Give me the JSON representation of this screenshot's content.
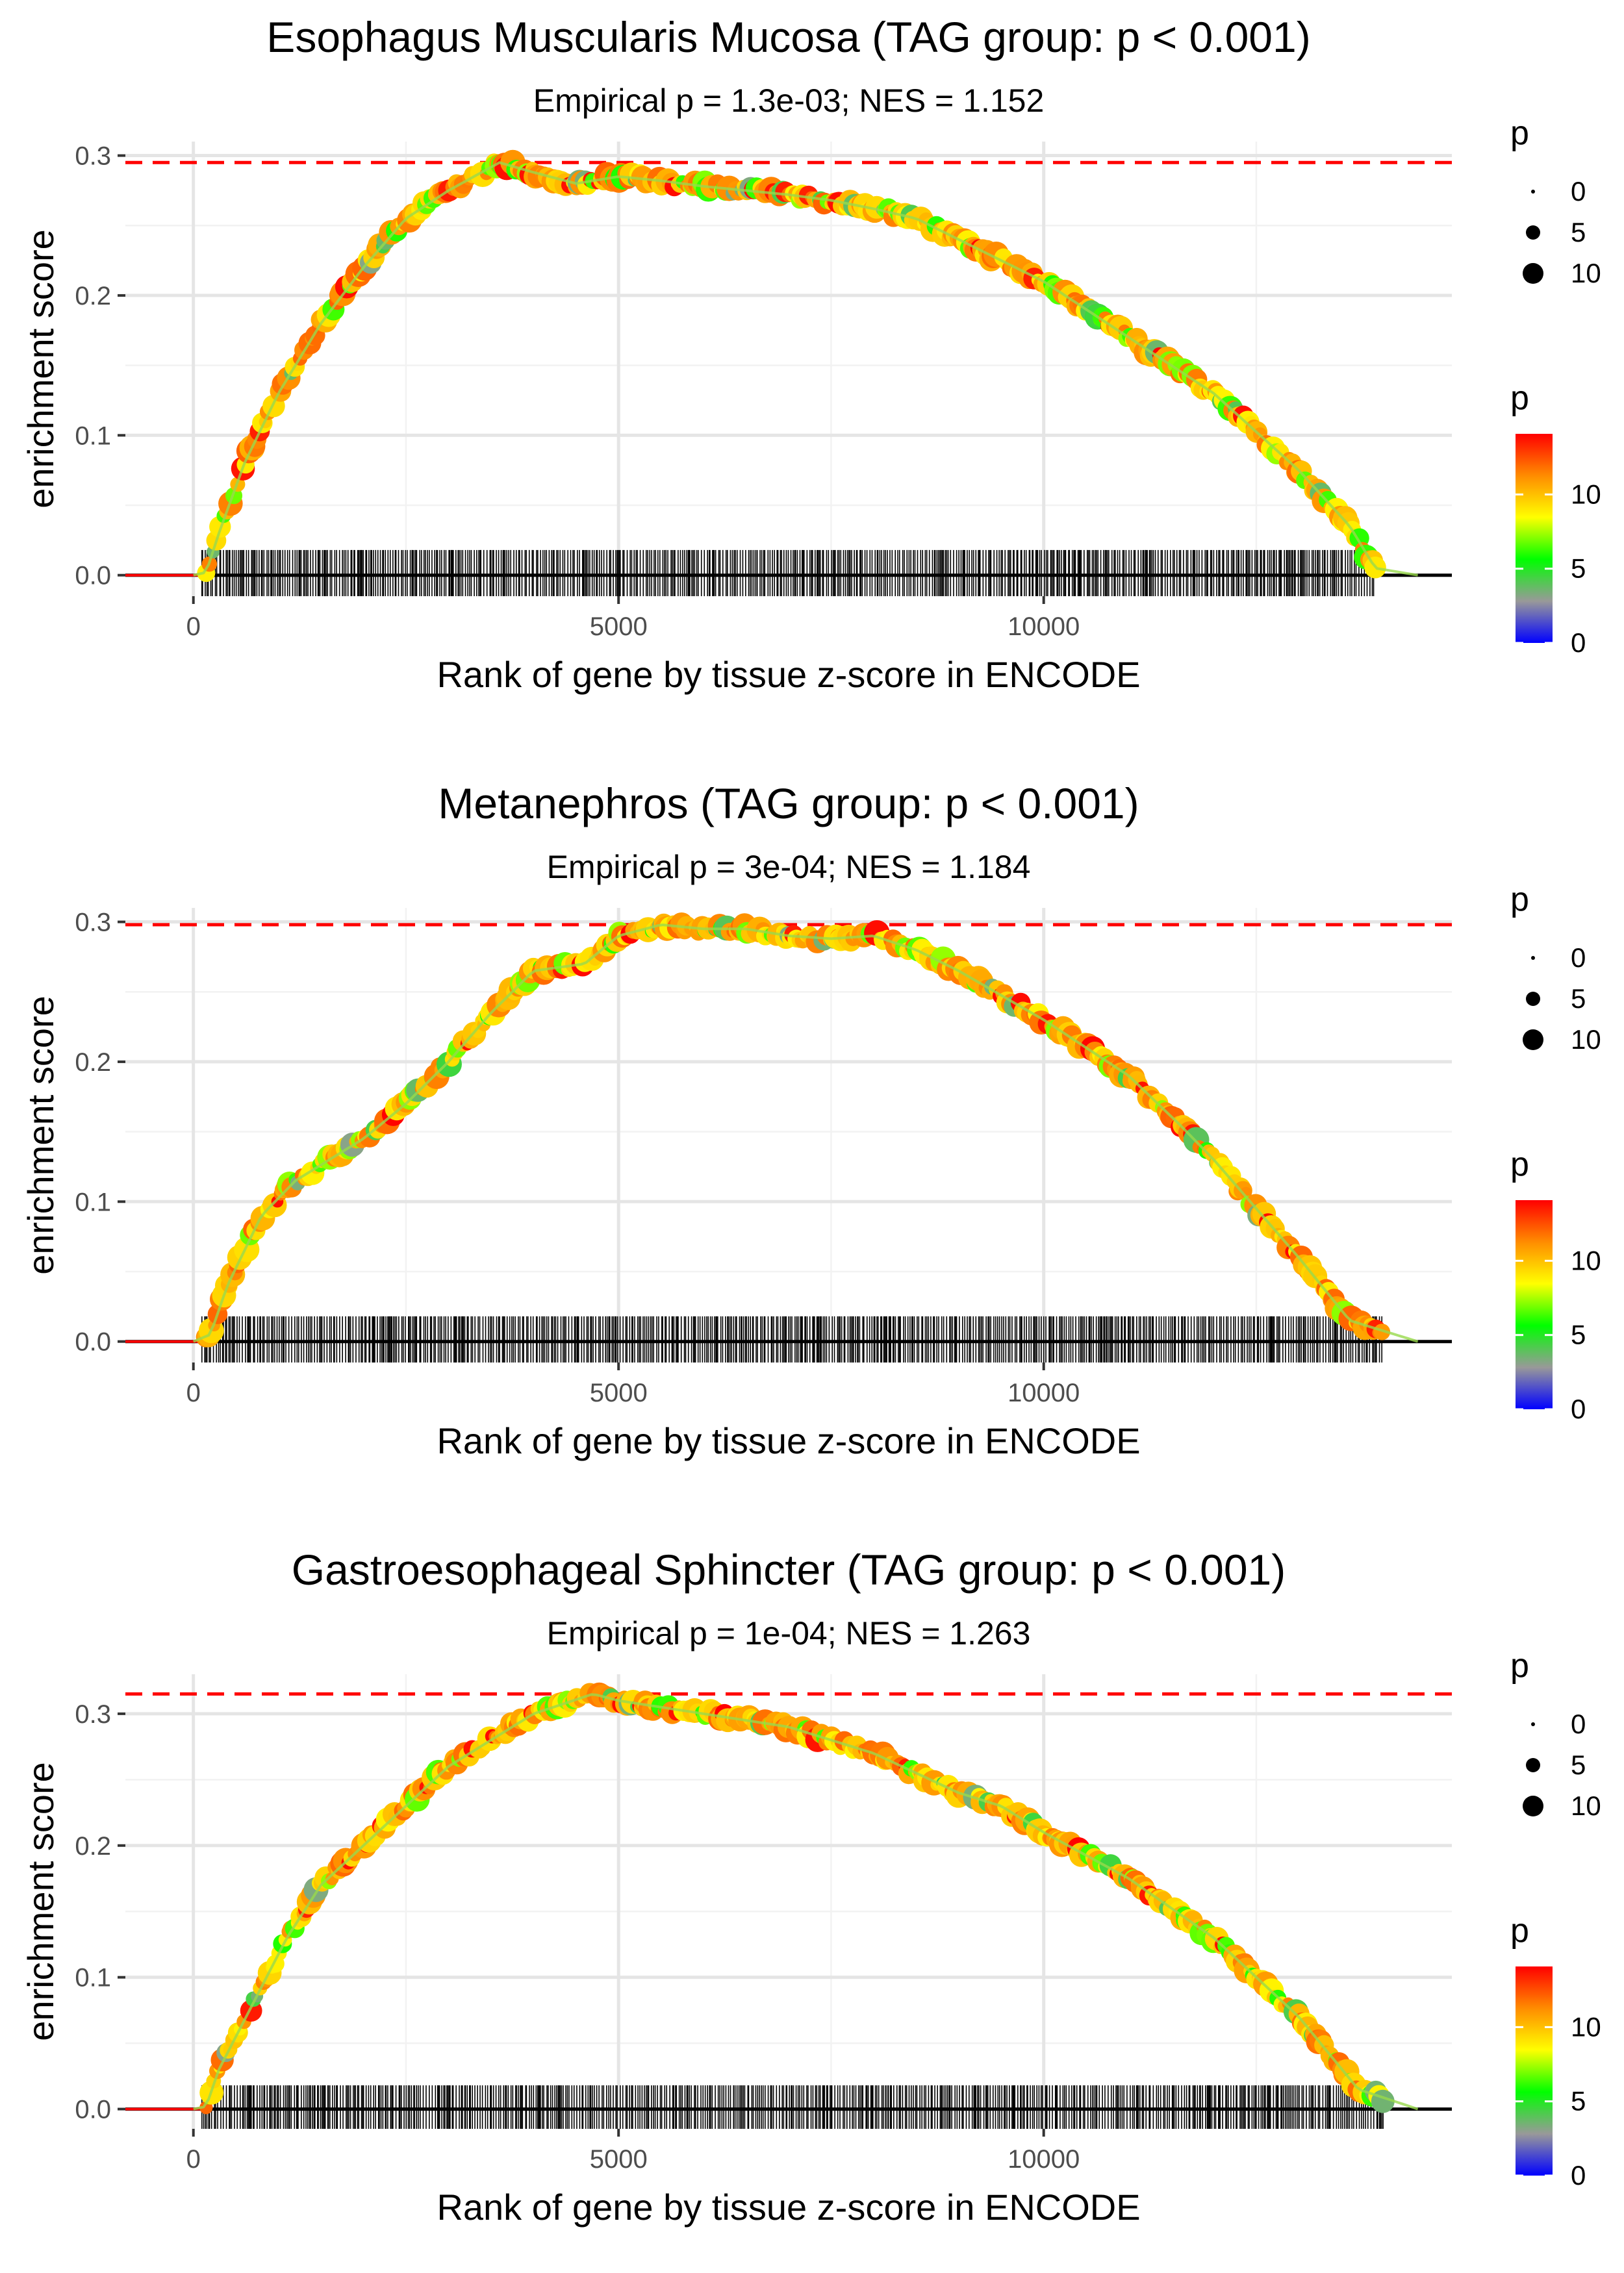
{
  "chart_data": [
    {
      "type": "scatter",
      "title": "Esophagus Muscularis Mucosa (TAG group: p < 0.001)",
      "subtitle": "Empirical p = 1.3e-03; NES = 1.152",
      "xlabel": "Rank of gene by tissue z-score in ENCODE",
      "ylabel": "enrichment score",
      "xlim": [
        -800,
        14800
      ],
      "ylim": [
        -0.015,
        0.31
      ],
      "x_ticks": [
        0,
        5000,
        10000
      ],
      "x_tick_labels": [
        "0",
        "5000",
        "10000"
      ],
      "y_ticks": [
        0.0,
        0.1,
        0.2,
        0.3
      ],
      "y_tick_labels": [
        "0.0",
        "0.1",
        "0.2",
        "0.3"
      ],
      "max_es": 0.295,
      "curve": {
        "x": [
          0,
          150,
          300,
          600,
          1000,
          1500,
          2000,
          2500,
          3000,
          3600,
          4000,
          4500,
          5000,
          5500,
          6000,
          6500,
          7000,
          7500,
          8000,
          8500,
          9000,
          10000,
          11000,
          12000,
          13000,
          13600,
          13900,
          14400
        ],
        "y": [
          0,
          0.002,
          0.03,
          0.08,
          0.13,
          0.18,
          0.22,
          0.255,
          0.275,
          0.295,
          0.288,
          0.28,
          0.285,
          0.282,
          0.278,
          0.275,
          0.272,
          0.268,
          0.262,
          0.255,
          0.24,
          0.21,
          0.17,
          0.13,
          0.075,
          0.035,
          0.005,
          0
        ]
      },
      "rug_range": [
        100,
        13900
      ],
      "legend_size": {
        "title": "p",
        "labels": [
          "0",
          "5",
          "10"
        ]
      },
      "legend_color": {
        "title": "p",
        "labels": [
          "0",
          "5",
          "10"
        ],
        "colors": [
          "#0000ff",
          "#999999",
          "#00ff00",
          "#ffff00",
          "#ff8c00",
          "#ff0000"
        ]
      }
    },
    {
      "type": "scatter",
      "title": "Metanephros (TAG group: p < 0.001)",
      "subtitle": "Empirical p = 3e-04; NES = 1.184",
      "xlabel": "Rank of gene by tissue z-score in ENCODE",
      "ylabel": "enrichment score",
      "xlim": [
        -800,
        14800
      ],
      "ylim": [
        -0.015,
        0.31
      ],
      "x_ticks": [
        0,
        5000,
        10000
      ],
      "x_tick_labels": [
        "0",
        "5000",
        "10000"
      ],
      "y_ticks": [
        0.0,
        0.1,
        0.2,
        0.3
      ],
      "y_tick_labels": [
        "0.0",
        "0.1",
        "0.2",
        "0.3"
      ],
      "max_es": 0.298,
      "curve": {
        "x": [
          0,
          200,
          400,
          800,
          1200,
          1600,
          2000,
          2500,
          3000,
          3500,
          4000,
          4600,
          5000,
          5500,
          6000,
          6500,
          7000,
          7500,
          8000,
          8500,
          9000,
          10000,
          11000,
          11600,
          12000,
          13000,
          13600,
          14400
        ],
        "y": [
          0,
          0.005,
          0.04,
          0.09,
          0.115,
          0.13,
          0.145,
          0.17,
          0.2,
          0.235,
          0.265,
          0.27,
          0.29,
          0.298,
          0.295,
          0.295,
          0.29,
          0.288,
          0.29,
          0.28,
          0.265,
          0.23,
          0.19,
          0.155,
          0.13,
          0.06,
          0.015,
          0
        ]
      },
      "rug_range": [
        100,
        14000
      ],
      "legend_size": {
        "title": "p",
        "labels": [
          "0",
          "5",
          "10"
        ]
      },
      "legend_color": {
        "title": "p",
        "labels": [
          "0",
          "5",
          "10"
        ],
        "colors": [
          "#0000ff",
          "#999999",
          "#00ff00",
          "#ffff00",
          "#ff8c00",
          "#ff0000"
        ]
      }
    },
    {
      "type": "scatter",
      "title": "Gastroesophageal Sphincter (TAG group: p < 0.001)",
      "subtitle": "Empirical p = 1e-04; NES = 1.263",
      "xlabel": "Rank of gene by tissue z-score in ENCODE",
      "ylabel": "enrichment score",
      "xlim": [
        -800,
        14800
      ],
      "ylim": [
        -0.015,
        0.33
      ],
      "x_ticks": [
        0,
        5000,
        10000
      ],
      "x_tick_labels": [
        "0",
        "5000",
        "10000"
      ],
      "y_ticks": [
        0.0,
        0.1,
        0.2,
        0.3
      ],
      "y_tick_labels": [
        "0.0",
        "0.1",
        "0.2",
        "0.3"
      ],
      "max_es": 0.315,
      "curve": {
        "x": [
          0,
          150,
          300,
          700,
          1100,
          1500,
          2000,
          2500,
          3000,
          3500,
          4000,
          4700,
          5000,
          5500,
          6000,
          6500,
          7000,
          7500,
          8000,
          8500,
          9000,
          9500,
          10000,
          11000,
          12000,
          13000,
          13700,
          14400
        ],
        "y": [
          0,
          0.002,
          0.03,
          0.08,
          0.13,
          0.17,
          0.2,
          0.23,
          0.26,
          0.28,
          0.3,
          0.315,
          0.31,
          0.305,
          0.3,
          0.295,
          0.29,
          0.28,
          0.27,
          0.255,
          0.24,
          0.23,
          0.21,
          0.175,
          0.13,
          0.07,
          0.015,
          0
        ]
      },
      "rug_range": [
        100,
        14000
      ],
      "legend_size": {
        "title": "p",
        "labels": [
          "0",
          "5",
          "10"
        ]
      },
      "legend_color": {
        "title": "p",
        "labels": [
          "0",
          "5",
          "10"
        ],
        "colors": [
          "#0000ff",
          "#999999",
          "#00ff00",
          "#ffff00",
          "#ff8c00",
          "#ff0000"
        ]
      }
    }
  ]
}
